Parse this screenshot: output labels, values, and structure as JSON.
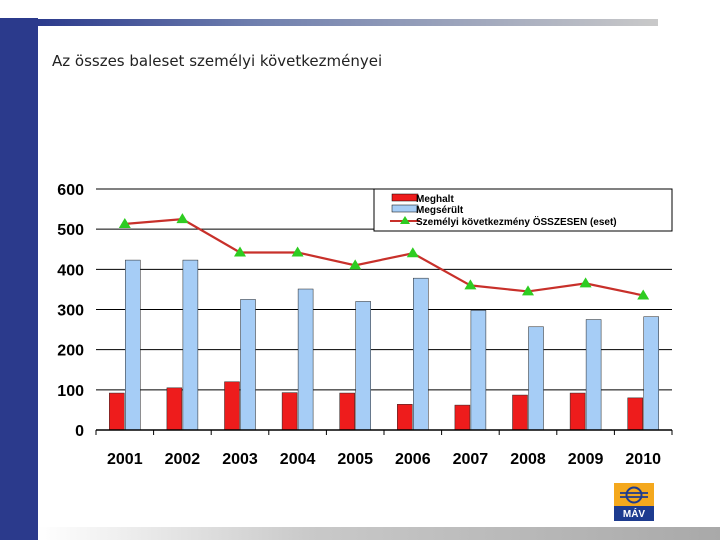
{
  "slide": {
    "title": "Az összes baleset személyi következményei",
    "logo_text": "MÁV"
  },
  "colors": {
    "sidebar": "#2b3a8c",
    "killed": "#ee1c1c",
    "injured": "#a6cdf6",
    "total_line": "#c8302a",
    "total_marker": "#2ecc21"
  },
  "chart_data": {
    "type": "bar",
    "categories": [
      "2001",
      "2002",
      "2003",
      "2004",
      "2005",
      "2006",
      "2007",
      "2008",
      "2009",
      "2010"
    ],
    "series": [
      {
        "name": "Meghalt",
        "type": "bar",
        "values": [
          92,
          105,
          120,
          93,
          92,
          64,
          62,
          87,
          92,
          80
        ]
      },
      {
        "name": "Megsérült",
        "type": "bar",
        "values": [
          423,
          423,
          325,
          351,
          320,
          378,
          298,
          257,
          275,
          282
        ]
      },
      {
        "name": "Személyi következmény ÖSSZESEN (eset)",
        "type": "line",
        "values": [
          513,
          525,
          442,
          442,
          410,
          440,
          360,
          345,
          365,
          335
        ]
      }
    ],
    "y_ticks": [
      "0",
      "100",
      "200",
      "300",
      "400",
      "500",
      "600"
    ],
    "ylim": [
      0,
      600
    ],
    "grid": "horizontal",
    "legend_position": "top-right"
  }
}
